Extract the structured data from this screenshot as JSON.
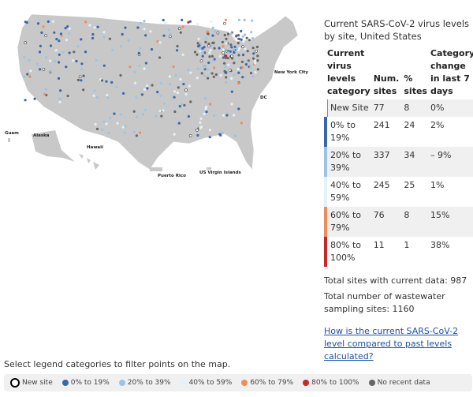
{
  "map": {
    "labels": {
      "guam": "Guam",
      "alaska": "Alaska",
      "hawaii": "Hawaii",
      "puerto_rico": "Puerto Rico",
      "usvi": "US Virgin Islands",
      "nyc": "New York City",
      "dc": "DC"
    }
  },
  "panel": {
    "title": "Current SARS-CoV-2 virus levels by site, United States",
    "headers": [
      "Current virus levels category",
      "Num. sites",
      "% sites",
      "Category change in last 7 days"
    ],
    "rows": [
      {
        "category": "New Site",
        "num": "77",
        "pct": "8",
        "change": "0%",
        "color": "#ffffff"
      },
      {
        "category": "0% to 19%",
        "num": "241",
        "pct": "24",
        "change": "2%",
        "color": "#3a66ad"
      },
      {
        "category": "20% to 39%",
        "num": "337",
        "pct": "34",
        "change": "– 9%",
        "color": "#9dc3e2"
      },
      {
        "category": "40% to 59%",
        "num": "245",
        "pct": "25",
        "change": "1%",
        "color": "#e3f1f8"
      },
      {
        "category": "60% to 79%",
        "num": "76",
        "pct": "8",
        "change": "15%",
        "color": "#f08c5c"
      },
      {
        "category": "80% to 100%",
        "num": "11",
        "pct": "1",
        "change": "38%",
        "color": "#c82727"
      }
    ],
    "total_current": "Total sites with current data: 987",
    "total_sampling": "Total number of wastewater sampling sites: 1160",
    "link": "How is the current SARS-CoV-2 level compared to past levels calculated?"
  },
  "instruction": "Select legend categories to filter points on the map.",
  "legend": [
    {
      "label": "New site",
      "color": "#ffffff"
    },
    {
      "label": "0% to 19%",
      "color": "#3a66ad"
    },
    {
      "label": "20% to 39%",
      "color": "#9dc3e2"
    },
    {
      "label": "40% to 59%",
      "color": "#e3f1f8"
    },
    {
      "label": "60% to 79%",
      "color": "#f08c5c"
    },
    {
      "label": "80% to 100%",
      "color": "#c82727"
    },
    {
      "label": "No recent data",
      "color": "#666666"
    }
  ]
}
